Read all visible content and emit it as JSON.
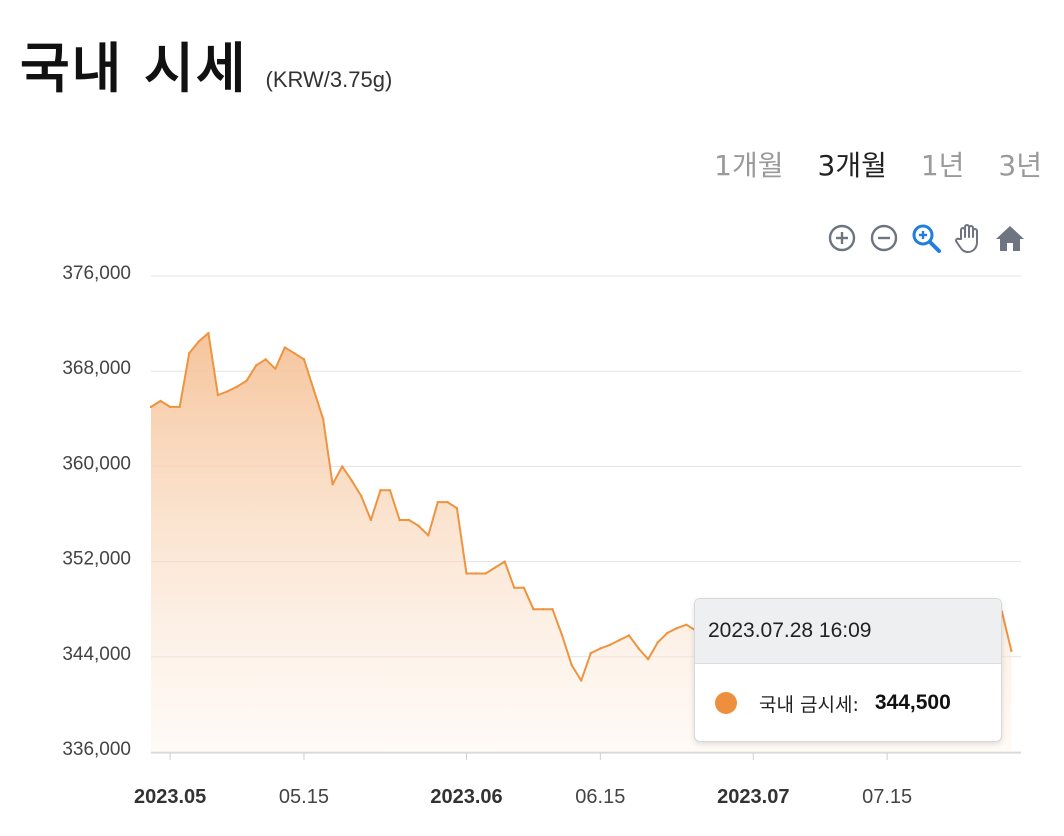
{
  "header": {
    "title": "국내 시세",
    "unit": "(KRW/3.75g)"
  },
  "periods": [
    {
      "label": "1개월",
      "active": false
    },
    {
      "label": "3개월",
      "active": true
    },
    {
      "label": "1년",
      "active": false
    },
    {
      "label": "3년",
      "active": false
    }
  ],
  "toolbar": [
    "zoom-in-icon",
    "zoom-out-icon",
    "selection-zoom-icon",
    "pan-hand-icon",
    "reset-home-icon"
  ],
  "tooltip": {
    "datetime": "2023.07.28 16:09",
    "series_label": "국내 금시세:",
    "value": "344,500"
  },
  "colors": {
    "line": "#ee9440",
    "fill_top": "#f5c59a",
    "marker": "#ee8f3d",
    "grid": "#e3e3e3",
    "icon": "#6e7480",
    "icon_active": "#1f7ee0"
  },
  "chart_data": {
    "type": "area",
    "ylim": [
      336000,
      376000
    ],
    "y_ticks": [
      "376,000",
      "368,000",
      "360,000",
      "352,000",
      "344,000",
      "336,000"
    ],
    "x_ticks": [
      {
        "label": "2023.05",
        "bold": true,
        "x": "2023-05-01"
      },
      {
        "label": "05.15",
        "bold": false,
        "x": "2023-05-15"
      },
      {
        "label": "2023.06",
        "bold": true,
        "x": "2023-06-01"
      },
      {
        "label": "06.15",
        "bold": false,
        "x": "2023-06-15"
      },
      {
        "label": "2023.07",
        "bold": true,
        "x": "2023-07-01"
      },
      {
        "label": "07.15",
        "bold": false,
        "x": "2023-07-15"
      }
    ],
    "xlim": [
      "2023-04-29",
      "2023-07-29"
    ],
    "grid": true,
    "series": [
      {
        "name": "국내 금시세",
        "x": [
          "2023-04-29",
          "2023-04-30",
          "2023-05-01",
          "2023-05-02",
          "2023-05-03",
          "2023-05-04",
          "2023-05-05",
          "2023-05-06",
          "2023-05-07",
          "2023-05-08",
          "2023-05-09",
          "2023-05-10",
          "2023-05-11",
          "2023-05-12",
          "2023-05-13",
          "2023-05-14",
          "2023-05-15",
          "2023-05-16",
          "2023-05-17",
          "2023-05-18",
          "2023-05-19",
          "2023-05-20",
          "2023-05-21",
          "2023-05-22",
          "2023-05-23",
          "2023-05-24",
          "2023-05-25",
          "2023-05-26",
          "2023-05-27",
          "2023-05-28",
          "2023-05-29",
          "2023-05-30",
          "2023-05-31",
          "2023-06-01",
          "2023-06-02",
          "2023-06-03",
          "2023-06-04",
          "2023-06-05",
          "2023-06-06",
          "2023-06-07",
          "2023-06-08",
          "2023-06-09",
          "2023-06-10",
          "2023-06-11",
          "2023-06-12",
          "2023-06-13",
          "2023-06-14",
          "2023-06-15",
          "2023-06-16",
          "2023-06-17",
          "2023-06-18",
          "2023-06-19",
          "2023-06-20",
          "2023-06-21",
          "2023-06-22",
          "2023-06-23",
          "2023-06-24",
          "2023-06-25",
          "2023-06-26",
          "2023-06-27",
          "2023-06-28",
          "2023-06-29",
          "2023-06-30",
          "2023-07-01",
          "2023-07-02",
          "2023-07-03",
          "2023-07-04",
          "2023-07-05",
          "2023-07-06",
          "2023-07-07",
          "2023-07-08",
          "2023-07-09",
          "2023-07-10",
          "2023-07-11",
          "2023-07-12",
          "2023-07-13",
          "2023-07-14",
          "2023-07-15",
          "2023-07-16",
          "2023-07-17",
          "2023-07-18",
          "2023-07-19",
          "2023-07-20",
          "2023-07-21",
          "2023-07-22",
          "2023-07-23",
          "2023-07-24",
          "2023-07-25",
          "2023-07-26",
          "2023-07-27",
          "2023-07-28"
        ],
        "values": [
          365000,
          365500,
          365000,
          365000,
          369500,
          370500,
          371200,
          366000,
          366300,
          366700,
          367200,
          368500,
          369000,
          368200,
          370000,
          369500,
          369000,
          366500,
          364000,
          358500,
          360000,
          358800,
          357500,
          355500,
          358000,
          358000,
          355500,
          355500,
          355000,
          354200,
          357000,
          357000,
          356500,
          351000,
          351000,
          351000,
          351500,
          352000,
          349800,
          349800,
          348000,
          348000,
          348000,
          345800,
          343300,
          342000,
          344300,
          344700,
          345000,
          345400,
          345800,
          344700,
          343800,
          345200,
          346000,
          346400,
          346700,
          346200,
          345600,
          346000,
          346500,
          347000,
          346800,
          347200,
          347600,
          347300,
          346800,
          347000,
          347500,
          347900,
          347400,
          346900,
          346500,
          347000,
          347300,
          347600,
          347900,
          347400,
          347000,
          347300,
          347700,
          348000,
          347600,
          347100,
          346700,
          346900,
          347300,
          347000,
          346500,
          347800,
          344500
        ]
      }
    ]
  }
}
